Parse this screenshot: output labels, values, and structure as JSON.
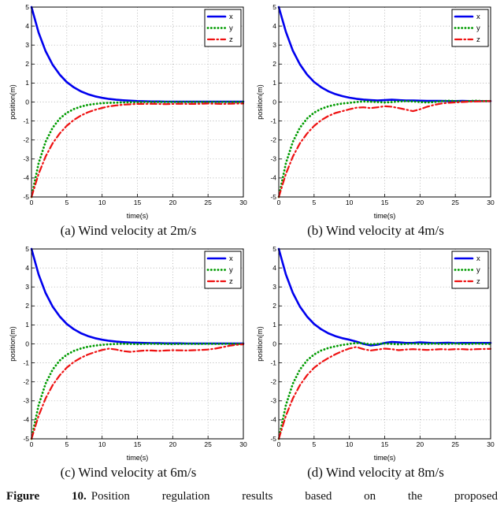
{
  "figure_caption": {
    "label": "Figure 10.",
    "text": "Position regulation results based on the proposed"
  },
  "chart_data": [
    {
      "type": "line",
      "title": "",
      "caption": "(a) Wind velocity at 2m/s",
      "xlabel": "time(s)",
      "ylabel": "position(m)",
      "xlim": [
        0,
        30
      ],
      "ylim": [
        -5,
        5
      ],
      "xticks": [
        0,
        5,
        10,
        15,
        20,
        25,
        30
      ],
      "yticks": [
        -5,
        -4,
        -3,
        -2,
        -1,
        0,
        1,
        2,
        3,
        4,
        5
      ],
      "grid": true,
      "legend_position": "top-right",
      "x": [
        0,
        1,
        2,
        3,
        4,
        5,
        6,
        7,
        8,
        9,
        10,
        11,
        12,
        13,
        14,
        15,
        16,
        17,
        18,
        19,
        20,
        21,
        22,
        23,
        24,
        25,
        26,
        27,
        28,
        29,
        30
      ],
      "series": [
        {
          "name": "x",
          "color": "#0000ee",
          "style": "solid",
          "values": [
            5,
            3.66,
            2.68,
            1.96,
            1.44,
            1.05,
            0.77,
            0.56,
            0.41,
            0.3,
            0.22,
            0.16,
            0.12,
            0.09,
            0.07,
            0.05,
            0.04,
            0.03,
            0.03,
            0.02,
            0.02,
            0.02,
            0.02,
            0.02,
            0.02,
            0.02,
            0.02,
            0.02,
            0.02,
            0.02,
            0.02
          ]
        },
        {
          "name": "y",
          "color": "#009b00",
          "style": "dotted",
          "values": [
            -5,
            -3.23,
            -2.09,
            -1.35,
            -0.87,
            -0.57,
            -0.37,
            -0.24,
            -0.15,
            -0.1,
            -0.06,
            -0.04,
            -0.03,
            -0.02,
            -0.01,
            -0.01,
            0,
            0,
            0,
            0,
            0,
            0,
            0,
            0,
            0,
            0,
            0,
            0,
            0,
            0,
            0
          ]
        },
        {
          "name": "z",
          "color": "#ee1111",
          "style": "dashdot",
          "values": [
            -5,
            -3.79,
            -2.87,
            -2.17,
            -1.65,
            -1.25,
            -0.94,
            -0.71,
            -0.54,
            -0.41,
            -0.31,
            -0.23,
            -0.18,
            -0.14,
            -0.12,
            -0.1,
            -0.1,
            -0.09,
            -0.1,
            -0.11,
            -0.1,
            -0.09,
            -0.1,
            -0.1,
            -0.09,
            -0.08,
            -0.09,
            -0.1,
            -0.09,
            -0.08,
            -0.08
          ]
        }
      ]
    },
    {
      "type": "line",
      "title": "",
      "caption": "(b) Wind velocity at 4m/s",
      "xlabel": "time(s)",
      "ylabel": "position(m)",
      "xlim": [
        0,
        30
      ],
      "ylim": [
        -5,
        5
      ],
      "xticks": [
        0,
        5,
        10,
        15,
        20,
        25,
        30
      ],
      "yticks": [
        -5,
        -4,
        -3,
        -2,
        -1,
        0,
        1,
        2,
        3,
        4,
        5
      ],
      "grid": true,
      "legend_position": "top-right",
      "x": [
        0,
        1,
        2,
        3,
        4,
        5,
        6,
        7,
        8,
        9,
        10,
        11,
        12,
        13,
        14,
        15,
        16,
        17,
        18,
        19,
        20,
        21,
        22,
        23,
        24,
        25,
        26,
        27,
        28,
        29,
        30
      ],
      "series": [
        {
          "name": "x",
          "color": "#0000ee",
          "style": "solid",
          "values": [
            5,
            3.7,
            2.7,
            1.98,
            1.45,
            1.06,
            0.78,
            0.57,
            0.42,
            0.31,
            0.23,
            0.17,
            0.13,
            0.1,
            0.08,
            0.1,
            0.12,
            0.1,
            0.08,
            0.08,
            0.07,
            0.06,
            0.06,
            0.06,
            0.05,
            0.05,
            0.06,
            0.05,
            0.05,
            0.05,
            0.05
          ]
        },
        {
          "name": "y",
          "color": "#009b00",
          "style": "dotted",
          "values": [
            -5,
            -3.23,
            -2.09,
            -1.35,
            -0.87,
            -0.56,
            -0.36,
            -0.23,
            -0.14,
            -0.08,
            -0.04,
            0,
            0.03,
            0.02,
            0,
            -0.02,
            0,
            0.03,
            0.05,
            0.03,
            0,
            -0.02,
            0,
            0.04,
            0.07,
            0.05,
            0.03,
            0.05,
            0.07,
            0.05,
            0.05
          ]
        },
        {
          "name": "z",
          "color": "#ee1111",
          "style": "dashdot",
          "values": [
            -5,
            -3.79,
            -2.87,
            -2.17,
            -1.66,
            -1.26,
            -0.96,
            -0.74,
            -0.58,
            -0.48,
            -0.38,
            -0.3,
            -0.28,
            -0.32,
            -0.28,
            -0.22,
            -0.25,
            -0.32,
            -0.4,
            -0.48,
            -0.38,
            -0.25,
            -0.15,
            -0.08,
            -0.04,
            -0.02,
            0,
            0.02,
            0.03,
            0.04,
            0.05
          ]
        }
      ]
    },
    {
      "type": "line",
      "title": "",
      "caption": "(c) Wind velocity at 6m/s",
      "xlabel": "time(s)",
      "ylabel": "position(m)",
      "xlim": [
        0,
        30
      ],
      "ylim": [
        -5,
        5
      ],
      "xticks": [
        0,
        5,
        10,
        15,
        20,
        25,
        30
      ],
      "yticks": [
        -5,
        -4,
        -3,
        -2,
        -1,
        0,
        1,
        2,
        3,
        4,
        5
      ],
      "grid": true,
      "legend_position": "top-right",
      "x": [
        0,
        1,
        2,
        3,
        4,
        5,
        6,
        7,
        8,
        9,
        10,
        11,
        12,
        13,
        14,
        15,
        16,
        17,
        18,
        19,
        20,
        21,
        22,
        23,
        24,
        25,
        26,
        27,
        28,
        29,
        30
      ],
      "series": [
        {
          "name": "x",
          "color": "#0000ee",
          "style": "solid",
          "values": [
            5,
            3.66,
            2.68,
            1.96,
            1.44,
            1.05,
            0.77,
            0.56,
            0.41,
            0.3,
            0.22,
            0.16,
            0.12,
            0.09,
            0.07,
            0.06,
            0.05,
            0.04,
            0.04,
            0.03,
            0.03,
            0.03,
            0.02,
            0.02,
            0.02,
            0.02,
            0.02,
            0.02,
            0.02,
            0.02,
            0.02
          ]
        },
        {
          "name": "y",
          "color": "#009b00",
          "style": "dotted",
          "values": [
            -5,
            -3.23,
            -2.09,
            -1.35,
            -0.87,
            -0.57,
            -0.37,
            -0.24,
            -0.15,
            -0.09,
            -0.05,
            -0.02,
            0,
            0.01,
            0,
            -0.01,
            0,
            0.01,
            0,
            0,
            -0.01,
            0,
            0.01,
            0,
            0,
            0.01,
            0,
            0,
            0.01,
            0,
            0
          ]
        },
        {
          "name": "z",
          "color": "#ee1111",
          "style": "dashdot",
          "values": [
            -5,
            -3.79,
            -2.87,
            -2.17,
            -1.65,
            -1.25,
            -0.95,
            -0.73,
            -0.56,
            -0.43,
            -0.32,
            -0.25,
            -0.3,
            -0.38,
            -0.42,
            -0.38,
            -0.35,
            -0.35,
            -0.37,
            -0.35,
            -0.33,
            -0.34,
            -0.35,
            -0.33,
            -0.32,
            -0.3,
            -0.25,
            -0.18,
            -0.1,
            -0.05,
            -0.02
          ]
        }
      ]
    },
    {
      "type": "line",
      "title": "",
      "caption": "(d) Wind velocity at 8m/s",
      "xlabel": "time(s)",
      "ylabel": "position(m)",
      "xlim": [
        0,
        30
      ],
      "ylim": [
        -5,
        5
      ],
      "xticks": [
        0,
        5,
        10,
        15,
        20,
        25,
        30
      ],
      "yticks": [
        -5,
        -4,
        -3,
        -2,
        -1,
        0,
        1,
        2,
        3,
        4,
        5
      ],
      "grid": true,
      "legend_position": "top-right",
      "x": [
        0,
        1,
        2,
        3,
        4,
        5,
        6,
        7,
        8,
        9,
        10,
        11,
        12,
        13,
        14,
        15,
        16,
        17,
        18,
        19,
        20,
        21,
        22,
        23,
        24,
        25,
        26,
        27,
        28,
        29,
        30
      ],
      "series": [
        {
          "name": "x",
          "color": "#0000ee",
          "style": "solid",
          "values": [
            5,
            3.66,
            2.68,
            1.96,
            1.44,
            1.05,
            0.77,
            0.56,
            0.41,
            0.3,
            0.22,
            0.12,
            0,
            -0.08,
            -0.04,
            0.05,
            0.1,
            0.08,
            0.05,
            0.05,
            0.08,
            0.06,
            0.04,
            0.05,
            0.06,
            0.04,
            0.05,
            0.05,
            0.05,
            0.05,
            0.05
          ]
        },
        {
          "name": "y",
          "color": "#009b00",
          "style": "dotted",
          "values": [
            -5,
            -3.23,
            -2.09,
            -1.35,
            -0.87,
            -0.56,
            -0.35,
            -0.22,
            -0.13,
            -0.06,
            0,
            0.05,
            0.03,
            -0.02,
            0,
            0.02,
            0,
            -0.02,
            0,
            0.02,
            0,
            0,
            0.02,
            0,
            0,
            0.02,
            0,
            0,
            0.02,
            0,
            0
          ]
        },
        {
          "name": "z",
          "color": "#ee1111",
          "style": "dashdot",
          "values": [
            -5,
            -3.79,
            -2.87,
            -2.17,
            -1.65,
            -1.26,
            -0.97,
            -0.75,
            -0.55,
            -0.38,
            -0.24,
            -0.16,
            -0.28,
            -0.35,
            -0.3,
            -0.25,
            -0.28,
            -0.33,
            -0.3,
            -0.28,
            -0.3,
            -0.32,
            -0.3,
            -0.28,
            -0.3,
            -0.28,
            -0.28,
            -0.3,
            -0.28,
            -0.27,
            -0.26
          ]
        }
      ]
    }
  ]
}
